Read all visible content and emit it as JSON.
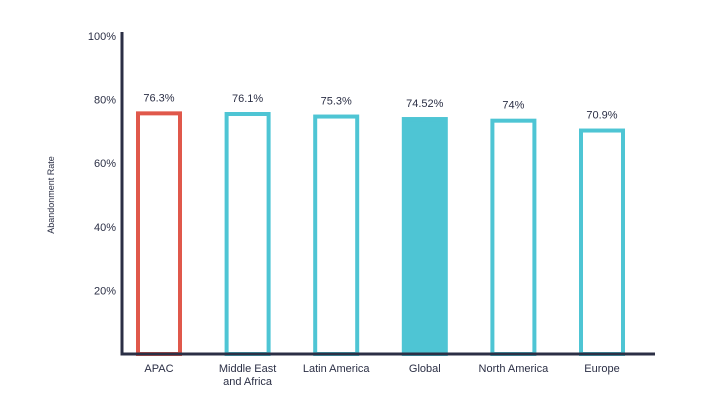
{
  "chart_data": {
    "type": "bar",
    "categories": [
      "APAC",
      "Middle East and Africa",
      "Latin America",
      "Global",
      "North America",
      "Europe"
    ],
    "category_lines": [
      [
        "APAC"
      ],
      [
        "Middle East",
        "and Africa"
      ],
      [
        "Latin America"
      ],
      [
        "Global"
      ],
      [
        "North America"
      ],
      [
        "Europe"
      ]
    ],
    "values": [
      76.3,
      76.1,
      75.3,
      74.52,
      74,
      70.9
    ],
    "value_labels": [
      "76.3%",
      "76.1%",
      "75.3%",
      "74.52%",
      "74%",
      "70.9%"
    ],
    "bar_styles": [
      "outline-red",
      "outline-teal",
      "outline-teal",
      "filled-teal",
      "outline-teal",
      "outline-teal"
    ],
    "ylabel": "Abandonment Rate",
    "yticks": [
      20,
      40,
      60,
      80,
      100
    ],
    "ytick_labels": [
      "20%",
      "40%",
      "60%",
      "80%",
      "100%"
    ],
    "ylim": [
      0,
      100
    ],
    "grid": false,
    "colors": {
      "red": "#e0584b",
      "teal": "#4ec5d4",
      "axis": "#2b2f45"
    }
  }
}
